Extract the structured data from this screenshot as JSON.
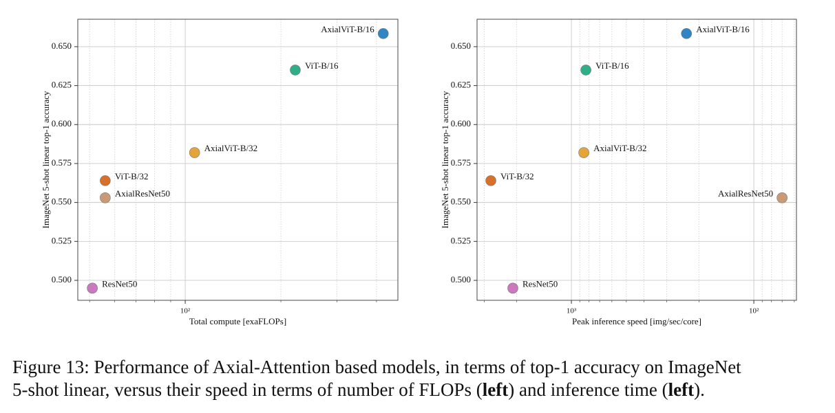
{
  "chart_data": [
    {
      "type": "scatter",
      "xlabel": "Total compute [exaFLOPs]",
      "ylabel": "ImageNet 5-shot linear top-1 accuracy",
      "xscale": "log",
      "grid": true,
      "xlim": [
        45.9,
        467
      ],
      "xticks": [
        {
          "value": 100,
          "label": "10²"
        }
      ],
      "xminorticks": [
        50,
        60,
        70,
        80,
        90,
        200,
        300,
        400
      ],
      "ylim": [
        0.4872,
        0.6676
      ],
      "yticks": [
        {
          "value": 0.5,
          "label": "0.500"
        },
        0.525,
        {
          "value": 0.55,
          "label": "0.550"
        },
        0.575,
        {
          "value": 0.6,
          "label": "0.600"
        },
        0.625,
        {
          "value": 0.65,
          "label": "0.650"
        }
      ],
      "series": [
        {
          "name": "ResNet50",
          "color": "#cc78bc",
          "x": [
            51
          ],
          "values": [
            0.495
          ]
        },
        {
          "name": "ViT-B/32",
          "color": "#d5712b",
          "x": [
            56
          ],
          "values": [
            0.564
          ]
        },
        {
          "name": "AxialResNet50",
          "color": "#ca9a77",
          "x": [
            56
          ],
          "values": [
            0.553
          ]
        },
        {
          "name": "AxialViT-B/32",
          "color": "#e5a43a",
          "x": [
            107
          ],
          "values": [
            0.582
          ]
        },
        {
          "name": "ViT-B/16",
          "color": "#2fae87",
          "x": [
            222
          ],
          "values": [
            0.635
          ]
        },
        {
          "name": "AxialViT-B/16",
          "color": "#2f86c2",
          "x": [
            420
          ],
          "values": [
            0.6584
          ]
        }
      ]
    },
    {
      "type": "scatter",
      "xlabel": "Peak inference speed [img/sec/core]",
      "ylabel": "ImageNet 5-shot linear top-1 accuracy",
      "xscale": "log",
      "grid": true,
      "xlim": [
        3290,
        58.4
      ],
      "xticks": [
        {
          "value": 1000,
          "label": "10³"
        },
        {
          "value": 100,
          "label": "10²"
        }
      ],
      "xminorticks": [
        3000,
        2000,
        900,
        800,
        700,
        600,
        500,
        400,
        300,
        200,
        90,
        80,
        70,
        60
      ],
      "ylim": [
        0.4872,
        0.6676
      ],
      "yticks": [
        {
          "value": 0.5,
          "label": "0.500"
        },
        0.525,
        {
          "value": 0.55,
          "label": "0.550"
        },
        0.575,
        {
          "value": 0.6,
          "label": "0.600"
        },
        0.625,
        {
          "value": 0.65,
          "label": "0.650"
        }
      ],
      "series": [
        {
          "name": "ResNet50",
          "color": "#cc78bc",
          "x": [
            2094
          ],
          "values": [
            0.495
          ]
        },
        {
          "name": "ViT-B/32",
          "color": "#d5712b",
          "x": [
            2764
          ],
          "values": [
            0.564
          ]
        },
        {
          "name": "AxialResNet50",
          "color": "#ca9a77",
          "x": [
            70
          ],
          "values": [
            0.553
          ]
        },
        {
          "name": "AxialViT-B/32",
          "color": "#e5a43a",
          "x": [
            855
          ],
          "values": [
            0.582
          ]
        },
        {
          "name": "ViT-B/16",
          "color": "#2fae87",
          "x": [
            833
          ],
          "values": [
            0.635
          ]
        },
        {
          "name": "AxialViT-B/16",
          "color": "#2f86c2",
          "x": [
            234
          ],
          "values": [
            0.6584
          ]
        }
      ]
    }
  ],
  "caption": {
    "parts": [
      "Figure 13: Performance of Axial-Attention based models, in terms of top-1 accuracy on ImageNet",
      "5-shot linear, versus their speed in terms of number of FLOPs (",
      "left",
      ") and inference time (",
      "left",
      ")."
    ]
  }
}
